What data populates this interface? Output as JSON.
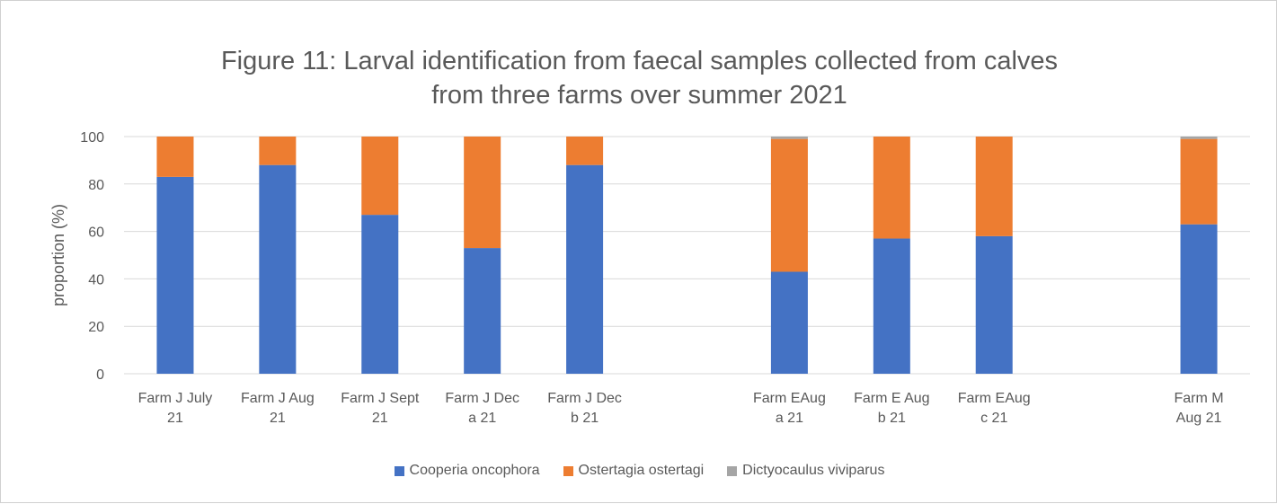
{
  "chart_data": {
    "type": "stacked_bar",
    "title": "Figure 11: Larval identification from faecal samples collected from calves\nfrom three farms over summer 2021",
    "y_label": "proportion (%)",
    "categories": [
      "Farm J July\n21",
      "Farm J Aug\n21",
      "Farm J Sept\n21",
      "Farm J Dec\na 21",
      "Farm J Dec\nb 21",
      null,
      "Farm EAug\na 21",
      "Farm E Aug\nb 21",
      "Farm EAug\nc 21",
      null,
      "Farm M\nAug 21"
    ],
    "series": [
      {
        "name": "Cooperia oncophora",
        "color": "#4472c4",
        "values": [
          83,
          88,
          67,
          53,
          88,
          null,
          43,
          57,
          58,
          null,
          63
        ]
      },
      {
        "name": "Ostertagia ostertagi",
        "color": "#ed7d31",
        "values": [
          17,
          12,
          33,
          47,
          12,
          null,
          56,
          43,
          42,
          null,
          36
        ]
      },
      {
        "name": "Dictyocaulus viviparus",
        "color": "#a5a5a5",
        "values": [
          0,
          0,
          0,
          0,
          0,
          null,
          1,
          0,
          0,
          null,
          1
        ]
      }
    ],
    "ylim": [
      0,
      100
    ],
    "yticks": [
      0,
      20,
      40,
      60,
      80,
      100
    ],
    "grid": true,
    "legend": "bottom"
  }
}
